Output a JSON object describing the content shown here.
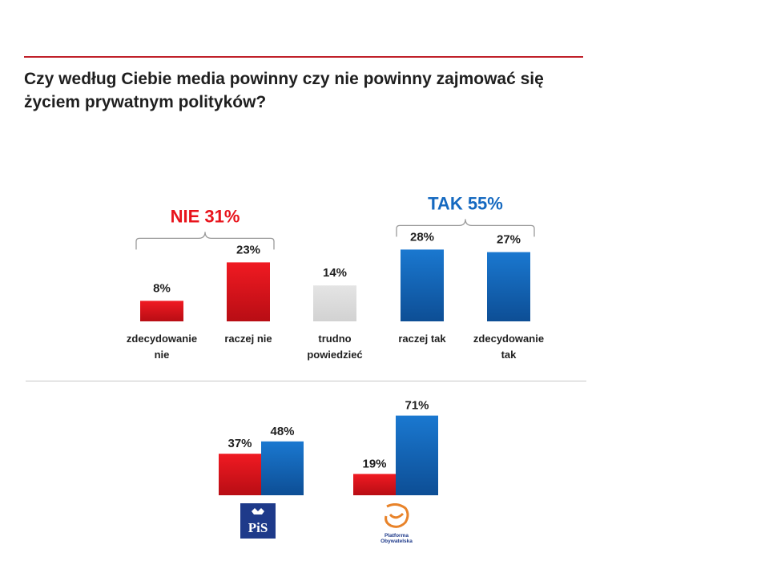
{
  "title_line1": "Czy według Ciebie media powinny czy nie powinny zajmować się",
  "title_line2": "życiem prywatnym polityków?",
  "colors": {
    "red": "#e8141c",
    "blue": "#1569c0",
    "gray": "#d9d9d9",
    "accent_line": "#c0202a"
  },
  "chart_data": [
    {
      "type": "bar",
      "categories": [
        [
          "zdecydowanie",
          "nie"
        ],
        [
          "raczej nie"
        ],
        [
          "trudno",
          "powiedzieć"
        ],
        [
          "raczej tak"
        ],
        [
          "zdecydowanie",
          "tak"
        ]
      ],
      "values": [
        8,
        23,
        14,
        28,
        27
      ],
      "value_labels": [
        "8%",
        "23%",
        "14%",
        "28%",
        "27%"
      ],
      "bar_colors": [
        "red",
        "red",
        "gray",
        "blue",
        "blue"
      ],
      "groups": [
        {
          "label": "NIE 31%",
          "color": "red",
          "from": 0,
          "to": 1
        },
        {
          "label": "TAK 55%",
          "color": "blue",
          "from": 3,
          "to": 4
        }
      ]
    },
    {
      "type": "bar",
      "groups": [
        {
          "logo": "pis-logo",
          "logo_text": "PiS",
          "values": [
            37,
            48
          ],
          "value_labels": [
            "37%",
            "48%"
          ],
          "colors": [
            "red",
            "blue"
          ]
        },
        {
          "logo": "po-logo",
          "logo_text": [
            "Platforma",
            "Obywatelska"
          ],
          "values": [
            19,
            71
          ],
          "value_labels": [
            "19%",
            "71%"
          ],
          "colors": [
            "red",
            "blue"
          ]
        }
      ]
    }
  ]
}
